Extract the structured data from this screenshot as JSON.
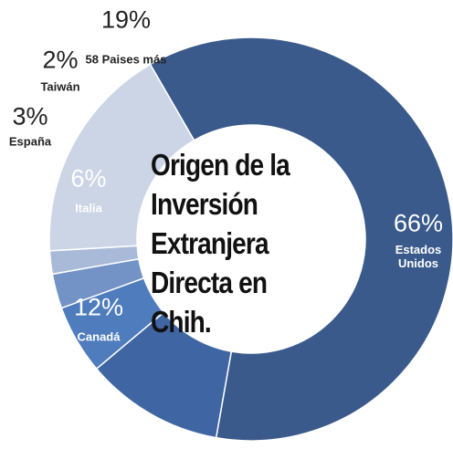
{
  "chart_data": {
    "type": "donut",
    "title": "Origen de la Inversión Extranjera Directa en Chih.",
    "categories": [
      "Estados Unidos",
      "Canadá",
      "Italia",
      "España",
      "Taiwán",
      "58 Paises más"
    ],
    "values": [
      66,
      12,
      6,
      3,
      2,
      19
    ],
    "value_labels": [
      "66%",
      "12%",
      "6%",
      "3%",
      "2%",
      "19%"
    ],
    "colors": [
      "#3a5a8c",
      "#3f66a3",
      "#4e7cbd",
      "#7393c7",
      "#a9bad8",
      "#cbd5e6"
    ]
  }
}
